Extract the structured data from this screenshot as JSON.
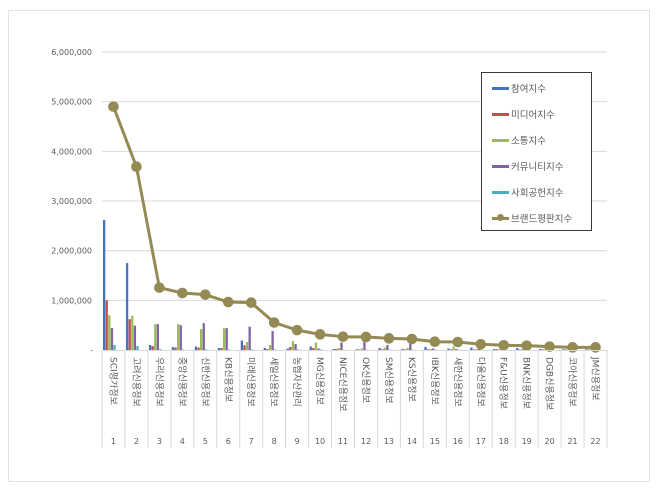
{
  "chart_data": {
    "type": "bar+line",
    "title": "",
    "xlabel": "",
    "ylabel": "",
    "ylim": [
      0,
      6000000
    ],
    "yticks": [
      {
        "value": 0,
        "label": "-"
      },
      {
        "value": 1000000,
        "label": "1,000,000"
      },
      {
        "value": 2000000,
        "label": "2,000,000"
      },
      {
        "value": 3000000,
        "label": "3,000,000"
      },
      {
        "value": 4000000,
        "label": "4,000,000"
      },
      {
        "value": 5000000,
        "label": "5,000,000"
      },
      {
        "value": 6000000,
        "label": "6,000,000"
      }
    ],
    "grid": true,
    "legend_position": "right-inside",
    "categories": [
      {
        "rank": "1",
        "name": "SCI평가정보"
      },
      {
        "rank": "2",
        "name": "고려신용정보"
      },
      {
        "rank": "3",
        "name": "우리신용정보"
      },
      {
        "rank": "4",
        "name": "중앙신용정보"
      },
      {
        "rank": "5",
        "name": "신한신용정보"
      },
      {
        "rank": "6",
        "name": "KB신용정보"
      },
      {
        "rank": "7",
        "name": "미래신용정보"
      },
      {
        "rank": "8",
        "name": "세일신용정보"
      },
      {
        "rank": "9",
        "name": "농협자산관리"
      },
      {
        "rank": "10",
        "name": "MG신용정보"
      },
      {
        "rank": "11",
        "name": "NICE신용정보"
      },
      {
        "rank": "12",
        "name": "OK신용정보"
      },
      {
        "rank": "13",
        "name": "SM신용정보"
      },
      {
        "rank": "14",
        "name": "KS신용정보"
      },
      {
        "rank": "15",
        "name": "IBK신용정보"
      },
      {
        "rank": "16",
        "name": "새한신용정보"
      },
      {
        "rank": "17",
        "name": "다올신용정보"
      },
      {
        "rank": "18",
        "name": "F&U신용정보"
      },
      {
        "rank": "19",
        "name": "BNK신용정보"
      },
      {
        "rank": "20",
        "name": "DGB신용정보"
      },
      {
        "rank": "21",
        "name": "코아신용정보"
      },
      {
        "rank": "22",
        "name": "JM신용정보"
      }
    ],
    "series": [
      {
        "name": "참여지수",
        "kind": "bar",
        "color": "#4472C4",
        "values": [
          2620000,
          1750000,
          100000,
          60000,
          70000,
          40000,
          190000,
          40000,
          30000,
          70000,
          20000,
          15000,
          40000,
          20000,
          60000,
          30000,
          50000,
          20000,
          40000,
          20000,
          15000,
          15000
        ]
      },
      {
        "name": "미디어지수",
        "kind": "bar",
        "color": "#C0504D",
        "values": [
          1000000,
          620000,
          80000,
          50000,
          50000,
          40000,
          95000,
          20000,
          60000,
          40000,
          20000,
          10000,
          15000,
          10000,
          15000,
          15000,
          10000,
          15000,
          10000,
          10000,
          10000,
          10000
        ]
      },
      {
        "name": "소통지수",
        "kind": "bar",
        "color": "#9BBB59",
        "values": [
          700000,
          690000,
          520000,
          520000,
          420000,
          440000,
          160000,
          100000,
          180000,
          150000,
          40000,
          30000,
          50000,
          40000,
          20000,
          70000,
          20000,
          20000,
          15000,
          15000,
          10000,
          10000
        ]
      },
      {
        "name": "커뮤니티지수",
        "kind": "bar",
        "color": "#8064A2",
        "values": [
          440000,
          490000,
          520000,
          500000,
          540000,
          440000,
          470000,
          380000,
          120000,
          30000,
          150000,
          200000,
          100000,
          155000,
          30000,
          20000,
          30000,
          20000,
          20000,
          15000,
          15000,
          10000
        ]
      },
      {
        "name": "사회공헌지수",
        "kind": "bar",
        "color": "#4BACC6",
        "values": [
          100000,
          80000,
          15000,
          10000,
          10000,
          10000,
          10000,
          10000,
          10000,
          10000,
          5000,
          5000,
          5000,
          5000,
          5000,
          5000,
          5000,
          5000,
          5000,
          5000,
          5000,
          5000
        ]
      },
      {
        "name": "브랜드평판지수",
        "kind": "line",
        "color": "#948A54",
        "values": [
          4900000,
          3690000,
          1256000,
          1147000,
          1114000,
          966000,
          955000,
          553000,
          400000,
          315000,
          268000,
          262000,
          235000,
          221000,
          167000,
          161000,
          115000,
          95000,
          87000,
          67000,
          54000,
          54000
        ]
      }
    ]
  },
  "legend": {
    "items": [
      {
        "label": "참여지수",
        "color": "#4472C4",
        "marker": "bar"
      },
      {
        "label": "미디어지수",
        "color": "#C0504D",
        "marker": "bar"
      },
      {
        "label": "소통지수",
        "color": "#9BBB59",
        "marker": "bar"
      },
      {
        "label": "커뮤니티지수",
        "color": "#8064A2",
        "marker": "bar"
      },
      {
        "label": "사회공헌지수",
        "color": "#4BACC6",
        "marker": "bar"
      },
      {
        "label": "브랜드평판지수",
        "color": "#948A54",
        "marker": "line-dot"
      }
    ]
  },
  "colors": {
    "gridline": "#d9d9d9",
    "axis": "#d9d9d9",
    "text": "#595959",
    "frame_border": "#e2e2e2",
    "legend_border": "#3a3a3a"
  }
}
